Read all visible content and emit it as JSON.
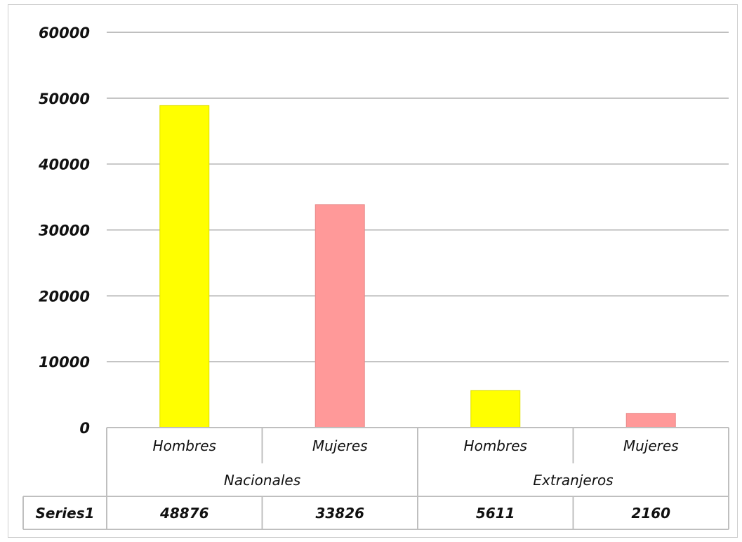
{
  "chart_data": {
    "type": "bar",
    "groups": [
      {
        "name": "Nacionales",
        "categories": [
          "Hombres",
          "Mujeres"
        ]
      },
      {
        "name": "Extranjeros",
        "categories": [
          "Hombres",
          "Mujeres"
        ]
      }
    ],
    "categories": [
      "Hombres",
      "Mujeres",
      "Hombres",
      "Mujeres"
    ],
    "series": [
      {
        "name": "Series1",
        "values": [
          48876,
          33826,
          5611,
          2160
        ],
        "colors": [
          "#ffff00",
          "#ff9999",
          "#ffff00",
          "#ff9999"
        ]
      }
    ],
    "ylim": [
      0,
      60000
    ],
    "yticks": [
      0,
      10000,
      20000,
      30000,
      40000,
      50000,
      60000
    ],
    "grid": true,
    "legend": "data-table",
    "data_table": true
  }
}
